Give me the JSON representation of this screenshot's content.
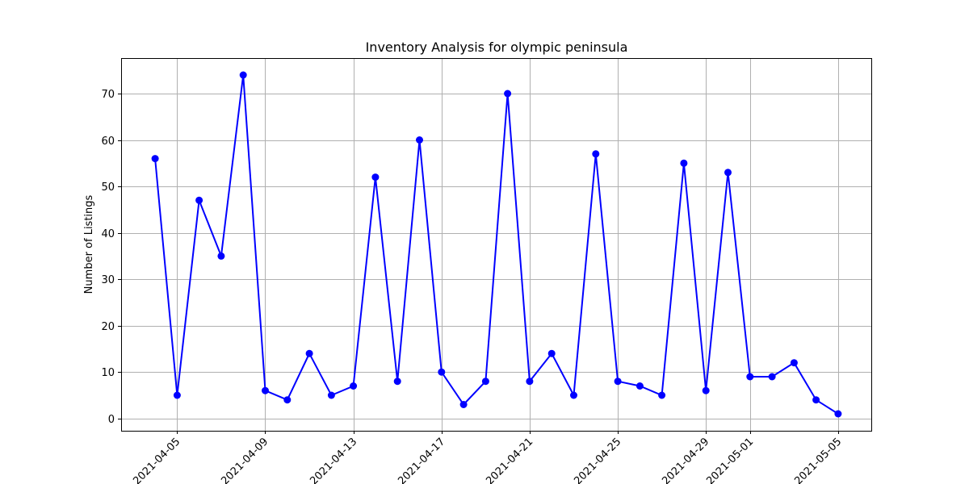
{
  "chart_data": {
    "type": "line",
    "title": "Inventory Analysis for olympic peninsula",
    "xlabel": "",
    "ylabel": "Number of Listings",
    "x": [
      "2021-04-04",
      "2021-04-05",
      "2021-04-06",
      "2021-04-07",
      "2021-04-08",
      "2021-04-09",
      "2021-04-10",
      "2021-04-11",
      "2021-04-12",
      "2021-04-13",
      "2021-04-14",
      "2021-04-15",
      "2021-04-16",
      "2021-04-17",
      "2021-04-18",
      "2021-04-19",
      "2021-04-20",
      "2021-04-21",
      "2021-04-22",
      "2021-04-23",
      "2021-04-24",
      "2021-04-25",
      "2021-04-26",
      "2021-04-27",
      "2021-04-28",
      "2021-04-29",
      "2021-04-30",
      "2021-05-01",
      "2021-05-02",
      "2021-05-03",
      "2021-05-04",
      "2021-05-05"
    ],
    "series": [
      {
        "values": [
          56,
          5,
          47,
          35,
          74,
          6,
          4,
          14,
          5,
          7,
          52,
          8,
          60,
          10,
          3,
          8,
          70,
          8,
          14,
          5,
          57,
          8,
          7,
          5,
          55,
          6,
          53,
          9,
          9,
          12,
          4,
          1
        ],
        "color": "#0000ff",
        "marker": "circle"
      }
    ],
    "xticks": [
      "2021-04-05",
      "2021-04-09",
      "2021-04-13",
      "2021-04-17",
      "2021-04-21",
      "2021-04-25",
      "2021-04-29",
      "2021-05-01",
      "2021-05-05"
    ],
    "yticks": [
      0,
      10,
      20,
      30,
      40,
      50,
      60,
      70
    ],
    "xlim": [
      "2021-04-02T11:00",
      "2021-05-06T13:00"
    ],
    "ylim": [
      -2.65,
      77.65
    ],
    "grid": true
  }
}
